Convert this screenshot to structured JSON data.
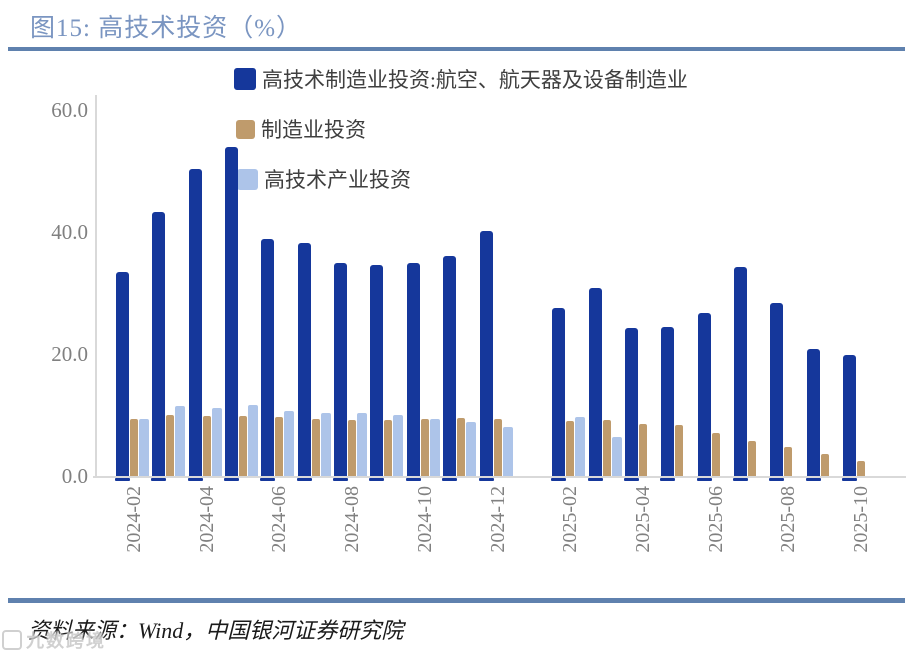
{
  "title": "图15:  高技术投资（%）",
  "source_note": "资料来源：Wind，中国银河证券研究院",
  "watermark": "九数跨境",
  "colors": {
    "title_text": "#7A95C1",
    "divider_rule": "#5F81AE",
    "axis_line": "#D9D9D9",
    "axis_text": "#808080",
    "legend_text": "#3F3F3F",
    "bar_aero": "#15379B",
    "bar_manufacturing": "#BF9B6C",
    "bar_hightech": "#ADC4E9"
  },
  "chart_data": {
    "type": "bar",
    "title": "图15:  高技术投资（%）",
    "xlabel": "",
    "ylabel": "",
    "ylim": [
      0,
      60
    ],
    "yticks": [
      0,
      20,
      40,
      60
    ],
    "ytick_labels": [
      "0.0",
      "20.0",
      "40.0",
      "60.0"
    ],
    "grid": false,
    "legend_position": "top-left-overlay",
    "categories": [
      "2024-02",
      "2024-03",
      "2024-04",
      "2024-05",
      "2024-06",
      "2024-07",
      "2024-08",
      "2024-09",
      "2024-10",
      "2024-11",
      "2024-12",
      "2025-02",
      "2025-03",
      "2025-04",
      "2025-05",
      "2025-06",
      "2025-07",
      "2025-08",
      "2025-09",
      "2025-10"
    ],
    "xticks_shown": [
      "2024-02",
      "2024-04",
      "2024-06",
      "2024-08",
      "2024-10",
      "2024-12",
      "2025-02",
      "2025-04",
      "2025-06",
      "2025-08",
      "2025-10"
    ],
    "gap_after_category": "2024-12",
    "series": [
      {
        "name": "高技术制造业投资:航空、航天器及设备制造业",
        "color": "#15379B",
        "values": [
          33.4,
          43.2,
          50.3,
          53.9,
          38.9,
          38.2,
          34.9,
          34.6,
          35.0,
          36.0,
          40.2,
          27.6,
          30.8,
          24.2,
          24.5,
          26.7,
          34.3,
          28.4,
          20.8,
          19.9
        ]
      },
      {
        "name": "制造业投资",
        "color": "#BF9B6C",
        "values": [
          9.4,
          10.0,
          9.9,
          9.8,
          9.6,
          9.4,
          9.2,
          9.1,
          9.4,
          9.5,
          9.3,
          9.0,
          9.2,
          8.5,
          8.3,
          7.1,
          5.8,
          4.8,
          3.6,
          2.4
        ]
      },
      {
        "name": "高技术产业投资",
        "color": "#ADC4E9",
        "values": [
          9.4,
          11.4,
          11.2,
          11.6,
          10.7,
          10.4,
          10.3,
          10.0,
          9.4,
          8.8,
          8.0,
          9.6,
          6.4,
          null,
          null,
          null,
          null,
          null,
          null,
          null
        ]
      }
    ]
  }
}
